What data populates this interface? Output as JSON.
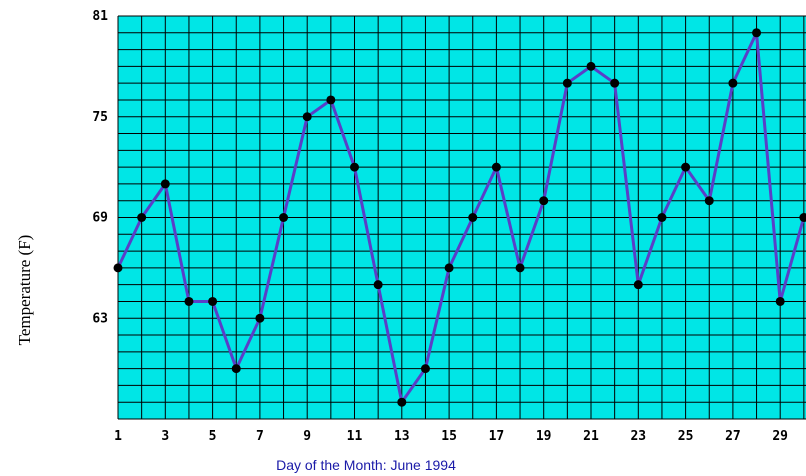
{
  "chart_data": {
    "type": "line",
    "xlabel": "Day of the Month:  June 1994",
    "ylabel": "Temperature (F)",
    "ylim": [
      57,
      81
    ],
    "xlim": [
      1,
      31
    ],
    "yticks": [
      81,
      75,
      69,
      63
    ],
    "xticks": [
      1,
      3,
      5,
      7,
      9,
      11,
      13,
      15,
      17,
      19,
      21,
      23,
      25,
      27,
      29
    ],
    "grid": true,
    "series": [
      {
        "x": [
          1,
          2,
          3,
          4,
          5,
          6,
          7,
          8,
          9,
          10,
          11,
          12,
          13,
          14,
          15,
          16,
          17,
          18,
          19,
          20,
          21,
          22,
          23,
          24,
          25,
          26,
          27,
          28,
          29,
          30
        ],
        "values": [
          66,
          69,
          71,
          64,
          64,
          60,
          63,
          69,
          75,
          76,
          72,
          65,
          58,
          60,
          66,
          69,
          72,
          66,
          70,
          77,
          78,
          77,
          65,
          69,
          72,
          70,
          77,
          80,
          64,
          69
        ]
      }
    ],
    "colors": {
      "plot_background": "#00e6e6",
      "grid": "#000000",
      "line": "#5a3ec8",
      "marker": "#000000",
      "xlabel": "#1a1aa8"
    }
  }
}
